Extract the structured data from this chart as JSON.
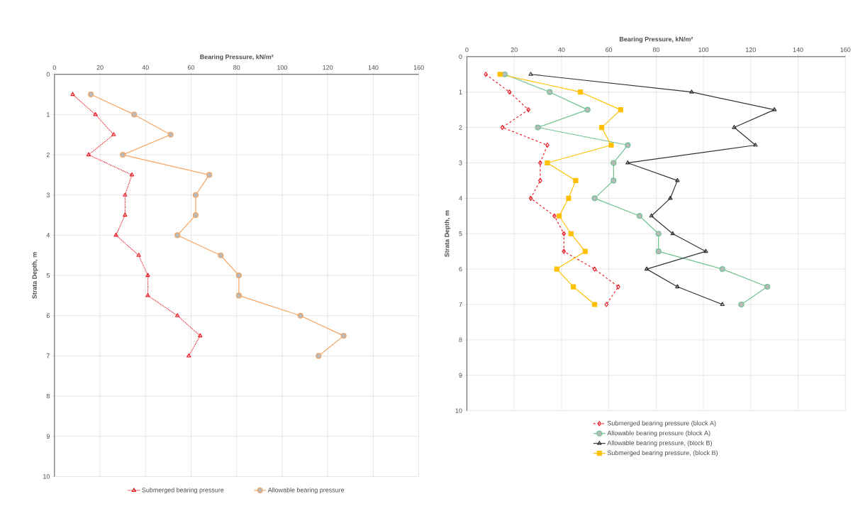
{
  "chart_data": [
    {
      "type": "line",
      "xlabel": "Bearing Pressure, kN/m²",
      "ylabel": "Strata Depth,  m",
      "xlim": [
        0,
        160
      ],
      "xticks": [
        0,
        20,
        40,
        60,
        80,
        100,
        120,
        140,
        160
      ],
      "ylim": [
        10,
        0
      ],
      "yticks": [
        0,
        1,
        2,
        3,
        4,
        5,
        6,
        7,
        8,
        9,
        10
      ],
      "grid": true,
      "legend": "bottom",
      "series": [
        {
          "name": "Submerged bearing pressure",
          "color": "#e8202a",
          "marker": "triangle",
          "line_style": "dotted",
          "x": [
            8,
            18,
            26,
            15,
            34,
            31,
            31,
            27,
            37,
            41,
            41,
            54,
            64,
            59
          ],
          "values": [
            0.5,
            1,
            1.5,
            2,
            2.5,
            3,
            3.5,
            4,
            4.5,
            5,
            5.5,
            6,
            6.5,
            7
          ]
        },
        {
          "name": "Allowable bearing pressure",
          "color": "#f4a460",
          "marker": "circle",
          "line_style": "solid",
          "x": [
            16,
            35,
            51,
            30,
            68,
            62,
            62,
            54,
            73,
            81,
            81,
            108,
            127,
            116
          ],
          "values": [
            0.5,
            1,
            1.5,
            2,
            2.5,
            3,
            3.5,
            4,
            4.5,
            5,
            5.5,
            6,
            6.5,
            7
          ]
        }
      ]
    },
    {
      "type": "line",
      "xlabel": "Bearing Pressure, kN/m²",
      "ylabel": "Strata Depth,  m",
      "xlim": [
        0,
        160
      ],
      "xticks": [
        0,
        20,
        40,
        60,
        80,
        100,
        120,
        140,
        160
      ],
      "ylim": [
        10,
        0
      ],
      "yticks": [
        0,
        1,
        2,
        3,
        4,
        5,
        6,
        7,
        8,
        9,
        10
      ],
      "grid": true,
      "legend": "bottom",
      "series": [
        {
          "name": "Submerged bearing pressure (block A)",
          "color": "#e8202a",
          "marker": "diamond",
          "line_style": "dashed",
          "x": [
            8,
            18,
            26,
            15,
            34,
            31,
            31,
            27,
            37,
            41,
            41,
            54,
            64,
            59
          ],
          "values": [
            0.5,
            1,
            1.5,
            2,
            2.5,
            3,
            3.5,
            4,
            4.5,
            5,
            5.5,
            6,
            6.5,
            7
          ]
        },
        {
          "name": "Allowable bearing pressure (block A)",
          "color": "#6cc28f",
          "marker": "circle",
          "line_style": "solid",
          "x": [
            16,
            35,
            51,
            30,
            68,
            62,
            62,
            54,
            73,
            81,
            81,
            108,
            127,
            116
          ],
          "values": [
            0.5,
            1,
            1.5,
            2,
            2.5,
            3,
            3.5,
            4,
            4.5,
            5,
            5.5,
            6,
            6.5,
            7
          ]
        },
        {
          "name": "Allowable bearing pressure, (block B)",
          "color": "#333333",
          "marker": "triangle",
          "line_style": "solid",
          "x": [
            27,
            95,
            130,
            113,
            122,
            68,
            89,
            86,
            78,
            87,
            101,
            76,
            89,
            108
          ],
          "values": [
            0.5,
            1,
            1.5,
            2,
            2.5,
            3,
            3.5,
            4,
            4.5,
            5,
            5.5,
            6,
            6.5,
            7
          ]
        },
        {
          "name": "Submerged bearing pressure, (block B)",
          "color": "#ffc000",
          "marker": "square",
          "line_style": "solid",
          "x": [
            14,
            48,
            65,
            57,
            61,
            34,
            46,
            43,
            39,
            44,
            50,
            38,
            45,
            54
          ],
          "values": [
            0.5,
            1,
            1.5,
            2,
            2.5,
            3,
            3.5,
            4,
            4.5,
            5,
            5.5,
            6,
            6.5,
            7
          ]
        }
      ]
    }
  ]
}
